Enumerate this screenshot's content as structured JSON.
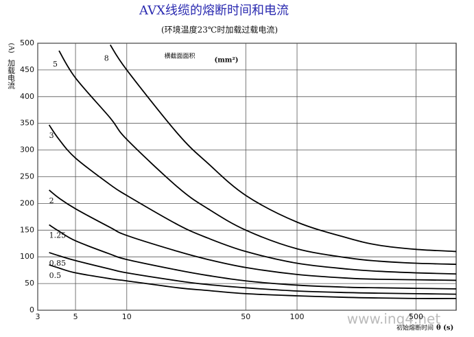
{
  "chart_data": {
    "type": "line",
    "title": "AVX线缆的熔断时间和电流",
    "subtitle": "(环境温度23℃时加载过载电流)",
    "ylabel_unit": "(A)",
    "ylabel": "加载电流",
    "xlabel": "初始熔断时间",
    "xlabel_unit": "θ (s)",
    "annotations": [
      "横截面面积",
      "(mm²)"
    ],
    "watermark": "www.ing4.net",
    "log_x": true,
    "grid": true,
    "x": [
      3.5,
      4,
      5,
      8,
      10,
      20,
      30,
      50,
      100,
      200,
      300,
      500,
      860
    ],
    "series": [
      {
        "name": "8",
        "color": "#000000",
        "values": [
          null,
          null,
          null,
          497,
          450,
          330,
          275,
          215,
          165,
          135,
          122,
          114,
          110
        ]
      },
      {
        "name": "5",
        "color": "#000000",
        "values": [
          null,
          486,
          435,
          360,
          320,
          230,
          190,
          150,
          115,
          98,
          92,
          88,
          86
        ]
      },
      {
        "name": "3",
        "color": "#000000",
        "values": [
          347,
          320,
          285,
          235,
          215,
          160,
          135,
          110,
          88,
          77,
          73,
          70,
          68
        ]
      },
      {
        "name": "2",
        "color": "#000000",
        "values": [
          225,
          210,
          190,
          155,
          140,
          110,
          95,
          80,
          67,
          60,
          58,
          57,
          56
        ]
      },
      {
        "name": "1.25",
        "color": "#000000",
        "values": [
          160,
          148,
          130,
          105,
          95,
          75,
          65,
          55,
          47,
          43,
          42,
          41,
          40
        ]
      },
      {
        "name": "0.85",
        "color": "#000000",
        "values": [
          108,
          102,
          93,
          77,
          70,
          55,
          48,
          42,
          36,
          33,
          32,
          31,
          30
        ]
      },
      {
        "name": "0.5",
        "color": "#000000",
        "values": [
          85,
          79,
          70,
          59,
          55,
          42,
          37,
          31,
          27,
          24,
          23,
          22,
          22
        ]
      }
    ],
    "xlim": [
      3,
      860
    ],
    "xticks": [
      3,
      5,
      10,
      50,
      100,
      500
    ],
    "ylim": [
      0,
      500
    ],
    "yticks": [
      0,
      50,
      100,
      150,
      200,
      250,
      300,
      350,
      400,
      450,
      500
    ]
  }
}
